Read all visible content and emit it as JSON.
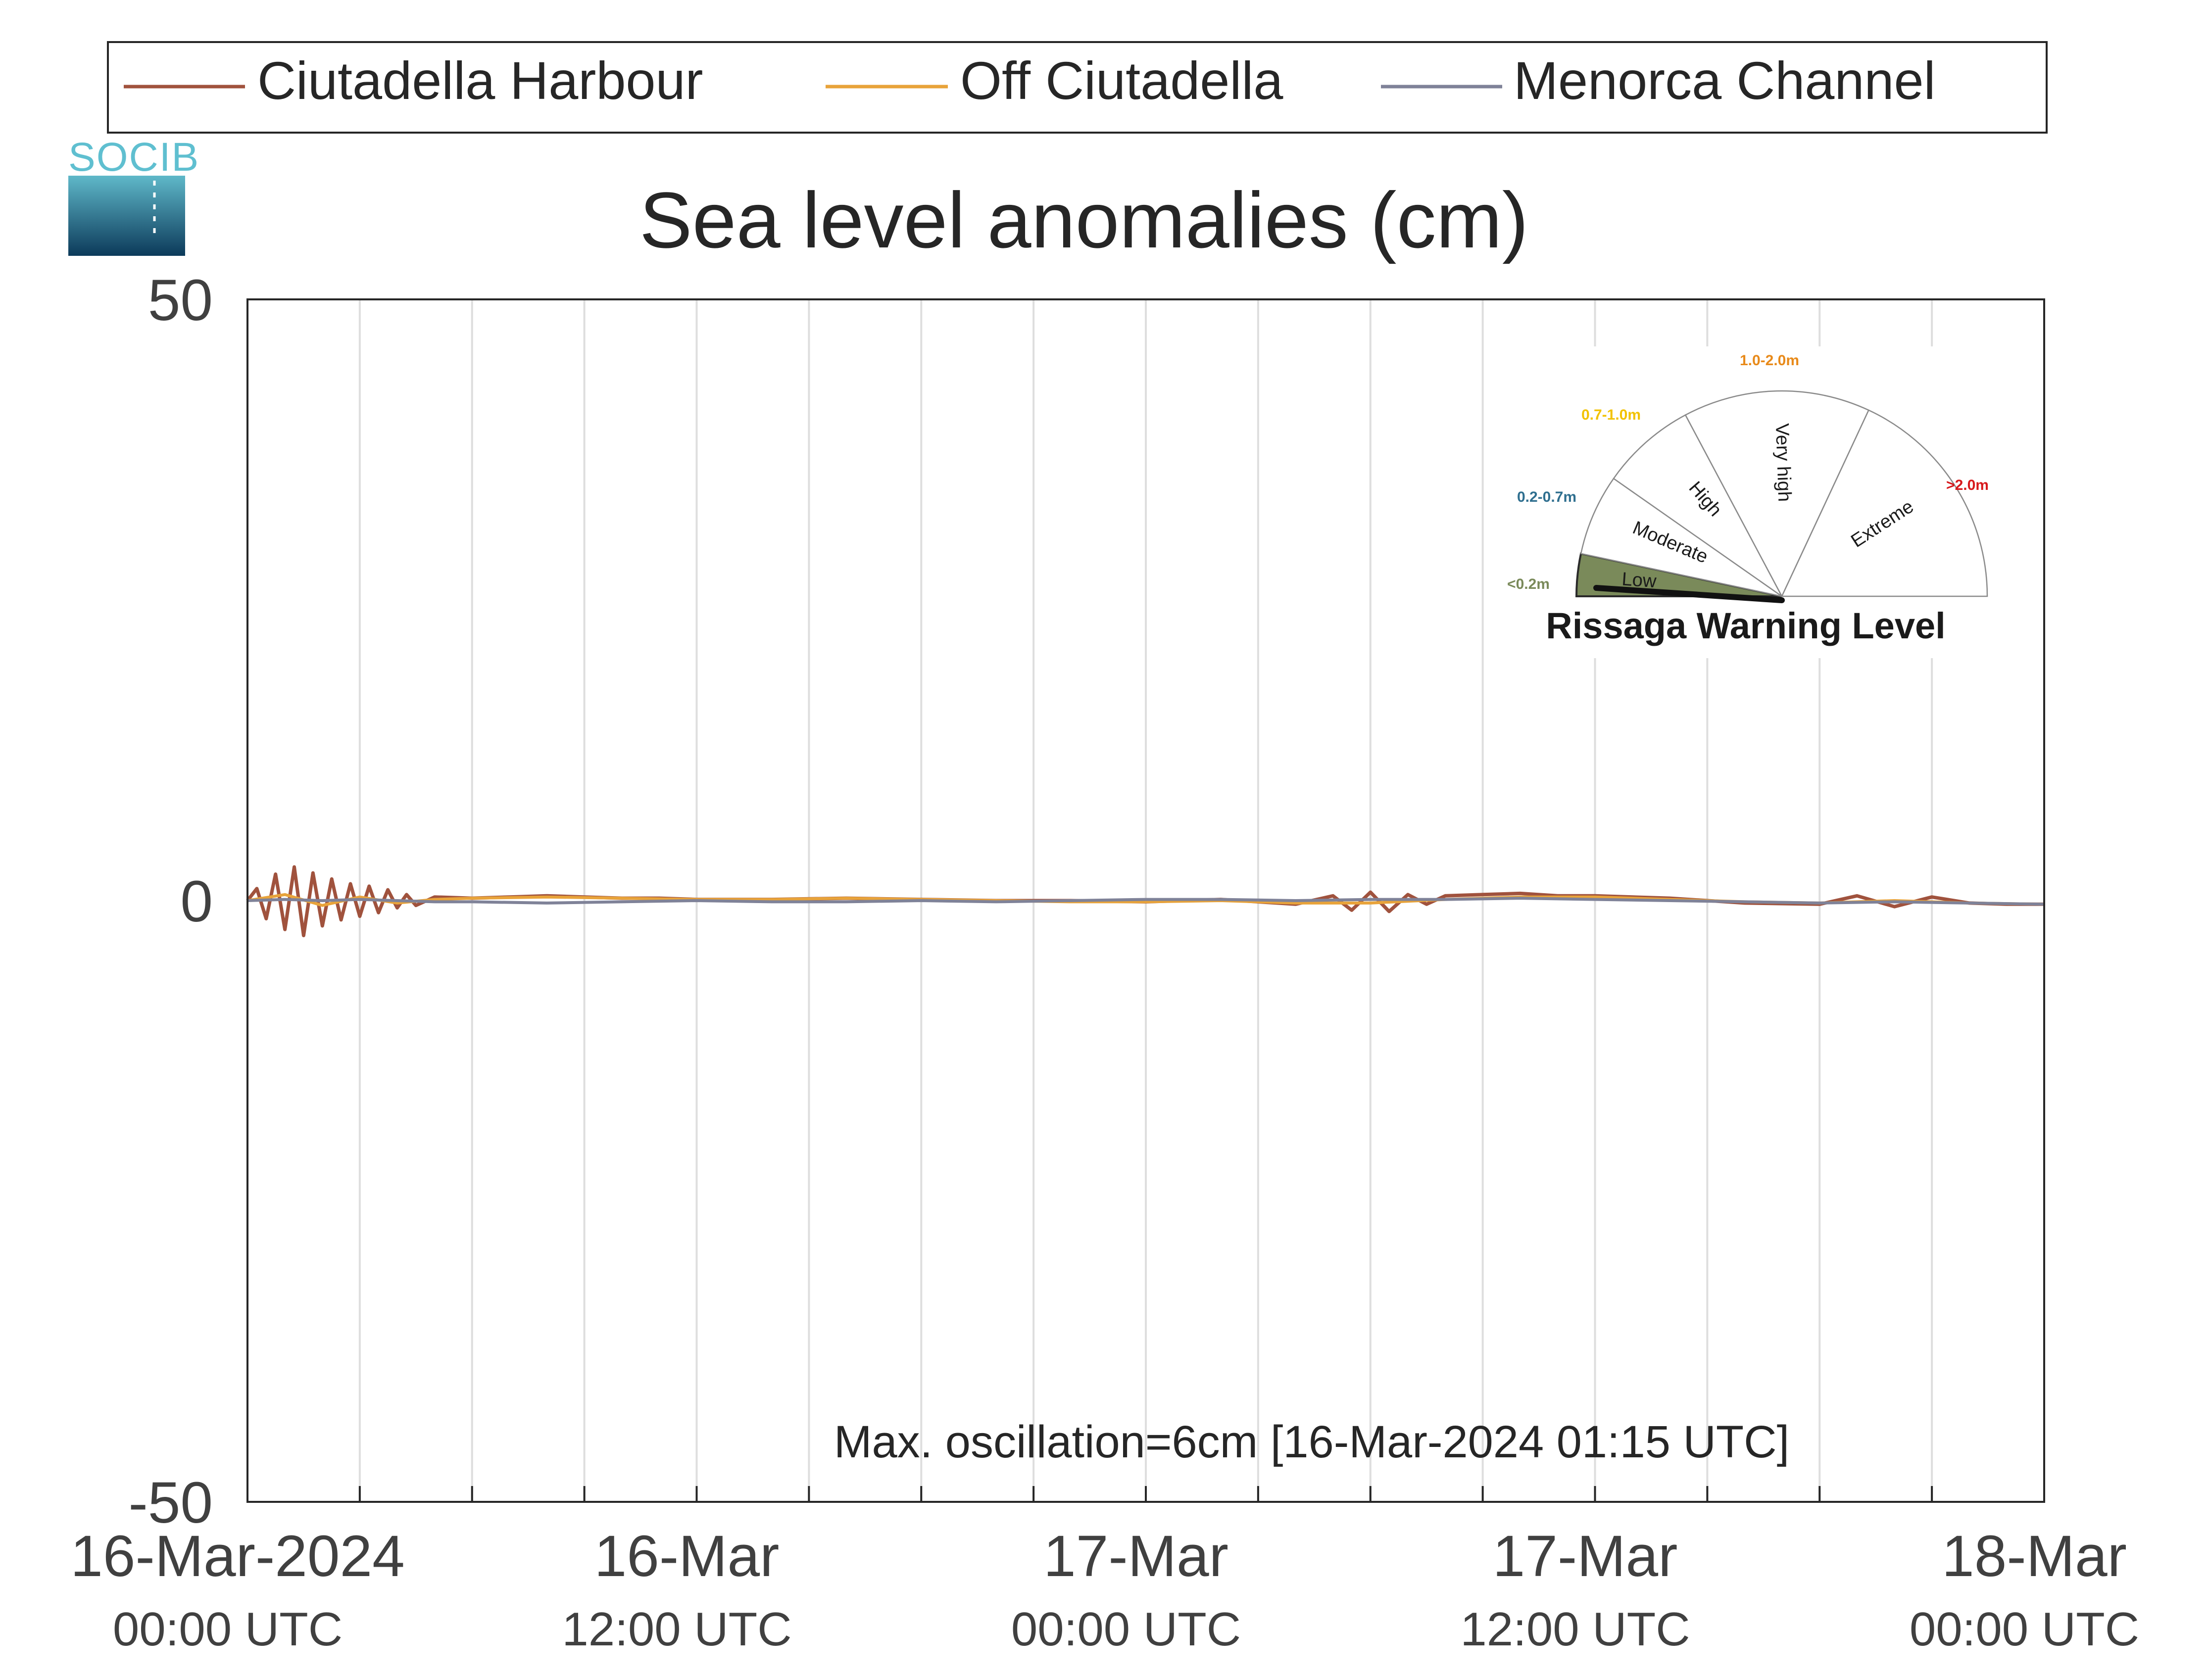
{
  "chart_data": {
    "type": "line",
    "title": "Sea level anomalies (cm)",
    "xlabel": "",
    "ylabel": "",
    "ylim": [
      -50,
      50
    ],
    "yticks": [
      -50,
      0,
      50
    ],
    "x_range": [
      "16-Mar-2024 00:00 UTC",
      "18-Mar-2024 00:00 UTC"
    ],
    "x_ticks": [
      {
        "line1": "16-Mar-2024",
        "line2": "00:00 UTC"
      },
      {
        "line1": "16-Mar",
        "line2": "12:00 UTC"
      },
      {
        "line1": "17-Mar",
        "line2": "00:00 UTC"
      },
      {
        "line1": "17-Mar",
        "line2": "12:00 UTC"
      },
      {
        "line1": "18-Mar",
        "line2": "00:00 UTC"
      }
    ],
    "x_tick_hours": [
      0,
      12,
      24,
      36,
      48
    ],
    "grid": "vertical lines every 3 hours",
    "legend_position": "top",
    "series": [
      {
        "name": "Ciutadella Harbour",
        "color": "#a0523d",
        "hours": [
          0,
          0.25,
          0.5,
          0.75,
          1.0,
          1.25,
          1.5,
          1.75,
          2.0,
          2.25,
          2.5,
          2.75,
          3.0,
          3.25,
          3.5,
          3.75,
          4.0,
          4.25,
          4.5,
          5,
          6,
          7,
          8,
          9,
          10,
          11,
          12,
          14,
          16,
          18,
          20,
          22,
          24,
          26,
          28,
          29,
          29.5,
          30,
          30.5,
          31,
          31.5,
          32,
          33,
          34,
          35,
          36,
          38,
          40,
          42,
          43,
          44,
          45,
          46,
          47,
          48
        ],
        "values": [
          0,
          1.0,
          -1.5,
          2.2,
          -2.4,
          2.8,
          -2.9,
          2.3,
          -2.1,
          1.8,
          -1.6,
          1.4,
          -1.3,
          1.2,
          -1.0,
          0.9,
          -0.6,
          0.5,
          -0.4,
          0.3,
          0.2,
          0.3,
          0.4,
          0.3,
          0.2,
          0.2,
          0.1,
          0.1,
          0.2,
          0.1,
          0.0,
          0.0,
          -0.1,
          0.1,
          -0.3,
          0.4,
          -0.8,
          0.7,
          -0.9,
          0.5,
          -0.3,
          0.4,
          0.5,
          0.6,
          0.4,
          0.4,
          0.2,
          -0.2,
          -0.3,
          0.4,
          -0.5,
          0.3,
          -0.2,
          -0.3,
          -0.3
        ]
      },
      {
        "name": "Off Ciutadella",
        "color": "#e8a33a",
        "hours": [
          0,
          1,
          2,
          3,
          4,
          5,
          6,
          8,
          10,
          12,
          14,
          16,
          18,
          20,
          22,
          24,
          26,
          28,
          30,
          32,
          34,
          36,
          38,
          40,
          42,
          44,
          46,
          48
        ],
        "values": [
          0,
          0.5,
          -0.4,
          0.3,
          -0.2,
          0.1,
          0.2,
          0.3,
          0.2,
          0.1,
          0.1,
          0.2,
          0.1,
          0.0,
          -0.1,
          -0.1,
          0.0,
          -0.2,
          -0.2,
          0.1,
          0.3,
          0.3,
          0.1,
          -0.1,
          -0.2,
          0.0,
          -0.2,
          -0.3
        ]
      },
      {
        "name": "Menorca Channel",
        "color": "#7f8298",
        "hours": [
          0,
          1,
          2,
          3,
          4,
          5,
          6,
          8,
          10,
          12,
          14,
          16,
          18,
          20,
          22,
          24,
          26,
          28,
          30,
          32,
          34,
          36,
          38,
          40,
          42,
          44,
          46,
          48
        ],
        "values": [
          0,
          0.1,
          0.0,
          0.1,
          0.0,
          -0.1,
          -0.1,
          -0.2,
          -0.1,
          0.0,
          -0.1,
          -0.1,
          0.0,
          -0.1,
          0.0,
          0.1,
          0.1,
          0.0,
          0.1,
          0.1,
          0.2,
          0.1,
          0.0,
          -0.1,
          -0.2,
          -0.1,
          -0.2,
          -0.3
        ]
      }
    ],
    "annotation": {
      "text": "Max. oscillation=6cm [16-Mar-2024 01:15 UTC]",
      "color": "#a0523d"
    }
  },
  "logo": {
    "text": "SOCIB"
  },
  "gauge": {
    "title": "Rissaga Warning Level",
    "active_level": "Low",
    "levels": [
      {
        "name": "Low",
        "range": "<0.2m",
        "color": "#7a8a5a"
      },
      {
        "name": "Moderate",
        "range": "0.2-0.7m",
        "color": "#2f6f8f"
      },
      {
        "name": "High",
        "range": "0.7-1.0m",
        "color": "#f2c200"
      },
      {
        "name": "Very high",
        "range": "1.0-2.0m",
        "color": "#e88a1a"
      },
      {
        "name": "Extreme",
        "range": ">2.0m",
        "color": "#d7191c"
      }
    ]
  }
}
